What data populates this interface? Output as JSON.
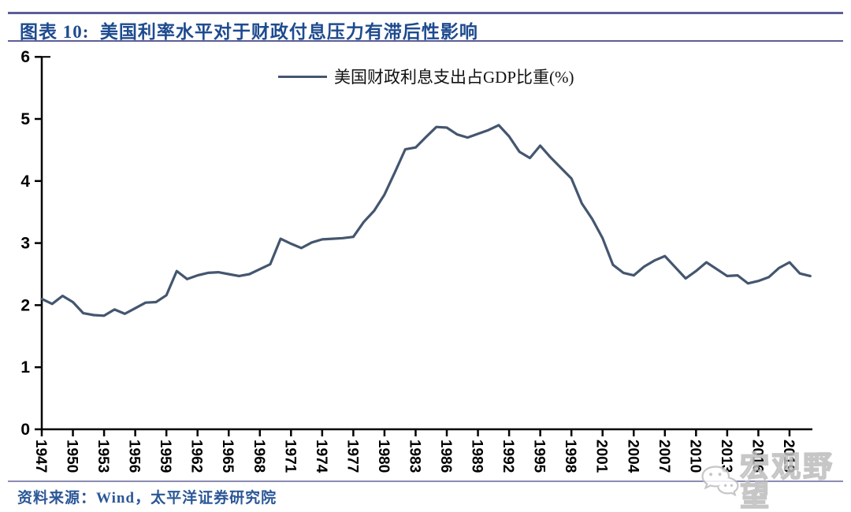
{
  "header": {
    "title": "图表 10:  美国利率水平对于财政付息压力有滞后性影响"
  },
  "legend": {
    "label": "美国财政利息支出占GDP比重(%)"
  },
  "source": {
    "label": "资料来源：Wind，太平洋证券研究院"
  },
  "watermark": {
    "text": "宏观野望",
    "icon": "wechat-bubbles-icon"
  },
  "colors": {
    "series_line": "#44566f",
    "axis": "#000000",
    "title_blue": "#1e4b8f",
    "rule_slate": "#5d5d96"
  },
  "chart_data": {
    "type": "line",
    "title": "图表 10: 美国利率水平对于财政付息压力有滞后性影响",
    "xlabel": "",
    "ylabel": "",
    "ylim": [
      0,
      6
    ],
    "xlim": [
      1947,
      2021
    ],
    "grid": false,
    "legend_position": "top-center",
    "yticks": [
      0,
      1,
      2,
      3,
      4,
      5,
      6
    ],
    "xticks": [
      1947,
      1950,
      1953,
      1956,
      1959,
      1962,
      1965,
      1968,
      1971,
      1974,
      1977,
      1980,
      1983,
      1986,
      1989,
      1992,
      1995,
      1998,
      2001,
      2004,
      2007,
      2010,
      2013,
      2016,
      2019
    ],
    "series": [
      {
        "name": "美国财政利息支出占GDP比重(%)",
        "x": [
          1947,
          1948,
          1949,
          1950,
          1951,
          1952,
          1953,
          1954,
          1955,
          1956,
          1957,
          1958,
          1959,
          1960,
          1961,
          1962,
          1963,
          1964,
          1965,
          1966,
          1967,
          1968,
          1969,
          1970,
          1971,
          1972,
          1973,
          1974,
          1975,
          1976,
          1977,
          1978,
          1979,
          1980,
          1981,
          1982,
          1983,
          1984,
          1985,
          1986,
          1987,
          1988,
          1989,
          1990,
          1991,
          1992,
          1993,
          1994,
          1995,
          1996,
          1997,
          1998,
          1999,
          2000,
          2001,
          2002,
          2003,
          2004,
          2005,
          2006,
          2007,
          2008,
          2009,
          2010,
          2011,
          2012,
          2013,
          2014,
          2015,
          2016,
          2017,
          2018,
          2019,
          2020,
          2021
        ],
        "values": [
          2.1,
          2.02,
          2.15,
          2.05,
          1.87,
          1.84,
          1.83,
          1.93,
          1.86,
          1.95,
          2.04,
          2.05,
          2.16,
          2.55,
          2.42,
          2.48,
          2.52,
          2.53,
          2.5,
          2.47,
          2.5,
          2.58,
          2.66,
          3.07,
          2.99,
          2.92,
          3.01,
          3.06,
          3.07,
          3.08,
          3.1,
          3.34,
          3.52,
          3.78,
          4.14,
          4.51,
          4.54,
          4.71,
          4.87,
          4.86,
          4.75,
          4.7,
          4.76,
          4.82,
          4.9,
          4.72,
          4.47,
          4.37,
          4.57,
          4.38,
          4.21,
          4.04,
          3.64,
          3.39,
          3.08,
          2.65,
          2.52,
          2.48,
          2.62,
          2.72,
          2.79,
          2.61,
          2.43,
          2.55,
          2.69,
          2.58,
          2.47,
          2.48,
          2.35,
          2.39,
          2.45,
          2.6,
          2.69,
          2.51,
          2.47
        ]
      }
    ]
  }
}
